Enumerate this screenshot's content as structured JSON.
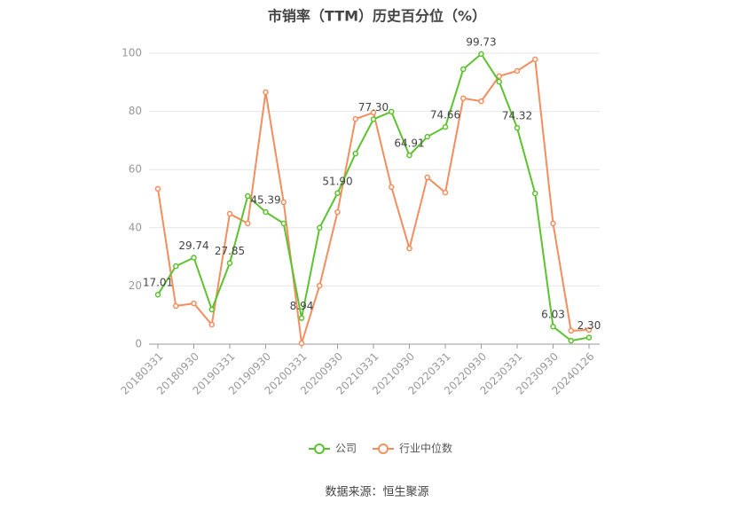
{
  "chart_data": {
    "type": "line",
    "title": "市销率（TTM）历史百分位（%）",
    "categories": [
      "20180331",
      null,
      "20180930",
      null,
      "20190331",
      null,
      "20190930",
      null,
      "20200331",
      null,
      "20200930",
      null,
      "20210331",
      null,
      "20210930",
      null,
      "20220331",
      null,
      "20220930",
      null,
      "20230331",
      null,
      "20230930",
      null,
      "20240126"
    ],
    "series": [
      {
        "name": "公司",
        "color": "#5cc22f",
        "values": [
          17.01,
          26.8,
          29.74,
          11.9,
          27.85,
          50.9,
          45.39,
          41.5,
          8.94,
          40.0,
          51.9,
          65.5,
          77.3,
          79.9,
          64.91,
          71.3,
          74.66,
          94.5,
          99.73,
          90.2,
          74.32,
          51.8,
          6.03,
          1.2,
          2.3
        ],
        "value_labels": [
          "17.01",
          null,
          "29.74",
          null,
          "27.85",
          null,
          "45.39",
          null,
          "8.94",
          null,
          "51.90",
          null,
          "77.30",
          null,
          "64.91",
          null,
          "74.66",
          null,
          "99.73",
          null,
          "74.32",
          null,
          "6.03",
          null,
          "2.30"
        ]
      },
      {
        "name": "行业中位数",
        "color": "#f28e5f",
        "values": [
          53.4,
          13.1,
          14.0,
          6.7,
          44.8,
          41.5,
          86.6,
          48.8,
          0.3,
          20.1,
          45.4,
          77.4,
          79.6,
          54.0,
          32.9,
          57.3,
          52.1,
          84.5,
          83.5,
          92.1,
          93.9,
          97.9,
          41.5,
          4.6,
          4.9
        ]
      }
    ],
    "ylim": [
      0,
      100
    ],
    "yticks": [
      0,
      20,
      40,
      60,
      80,
      100
    ],
    "grid": true,
    "source": "数据来源：恒生聚源"
  }
}
